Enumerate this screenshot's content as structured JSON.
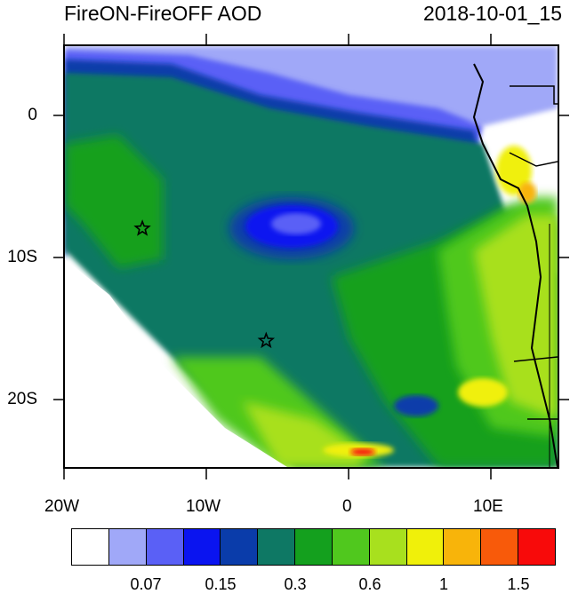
{
  "header": {
    "title": "FireON-FireOFF AOD",
    "datetime": "2018-10-01_15"
  },
  "map": {
    "lat_labels": [
      "0",
      "10S",
      "20S"
    ],
    "lon_labels": [
      "20W",
      "10W",
      "0",
      "10E"
    ],
    "lon_range": [
      -20,
      15
    ],
    "lat_range": [
      -25,
      5
    ],
    "markers": [
      {
        "name": "star-marker-1",
        "lon": -14.5,
        "lat": -8
      },
      {
        "name": "star-marker-2",
        "lon": -5.7,
        "lat": -16
      }
    ]
  },
  "colorbar": {
    "colors": [
      "#ffffff",
      "#a0a8f8",
      "#5a60f6",
      "#0a14f0",
      "#0a3caa",
      "#0e7864",
      "#14a01e",
      "#50c81e",
      "#a8e01e",
      "#f0f00a",
      "#f8b40a",
      "#f85a0a",
      "#f80a0a"
    ],
    "labels": [
      "0.07",
      "0.15",
      "0.3",
      "0.6",
      "1",
      "1.5"
    ]
  }
}
